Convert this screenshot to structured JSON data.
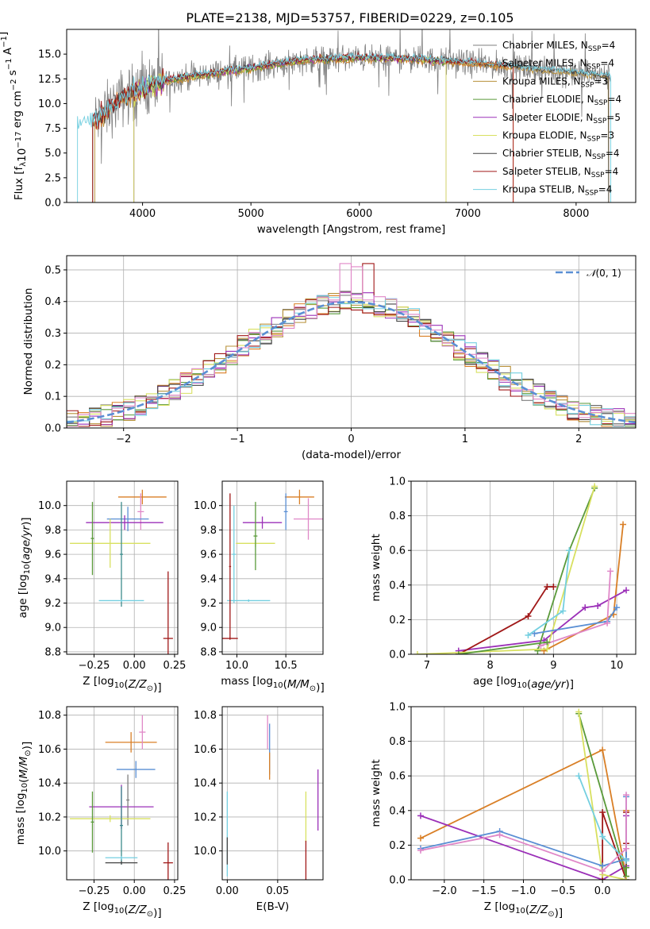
{
  "figure": {
    "title": "PLATE=2138, MJD=53757, FIBERID=0229, z=0.105"
  },
  "chart_data": [
    {
      "id": "spectrum",
      "type": "line",
      "xlabel": "wavelength [Angstrom, rest frame]",
      "ylabel": "Flux [f$_\\lambda$10$^{-17}$ erg cm$^{-2}$ s$^{-1}$ A$^{-1}$]",
      "ylabel_parts": [
        "Flux [f",
        "λ",
        "10",
        "−17",
        " erg cm",
        "−2",
        " s",
        "−1",
        " A",
        "−1",
        "]"
      ],
      "xlim": [
        3300,
        8550
      ],
      "ylim": [
        0,
        17.5
      ],
      "xticks": [
        4000,
        5000,
        6000,
        7000,
        8000
      ],
      "yticks": [
        0.0,
        2.5,
        5.0,
        7.5,
        10.0,
        12.5,
        15.0
      ],
      "grid": false,
      "legend_position": "right",
      "series": [
        {
          "name": "Chabrier MILES, N$_{SSP}$=4",
          "base": "Chabrier MILES, N",
          "sub": "SSP",
          "tail": "=4",
          "color": "#7f7f7f",
          "x_range": [
            3560,
            8320
          ]
        },
        {
          "name": "Salpeter MILES, N$_{SSP}$=4",
          "base": "Salpeter MILES, N",
          "sub": "SSP",
          "tail": "=4",
          "color": "#d97f26",
          "x_range": [
            3540,
            7420
          ]
        },
        {
          "name": "Kroupa MILES, N$_{SSP}$=3",
          "base": "Kroupa MILES, N",
          "sub": "SSP",
          "tail": "=3",
          "color": "#b8913a",
          "x_range": [
            3560,
            8300
          ]
        },
        {
          "name": "Chabrier ELODIE, N$_{SSP}$=4",
          "base": "Chabrier ELODIE, N",
          "sub": "SSP",
          "tail": "=4",
          "color": "#5a9a3a",
          "x_range": [
            3920,
            6800
          ]
        },
        {
          "name": "Salpeter ELODIE, N$_{SSP}$=5",
          "base": "Salpeter ELODIE, N",
          "sub": "SSP",
          "tail": "=5",
          "color": "#9b30b8",
          "x_range": [
            3920,
            6800
          ]
        },
        {
          "name": "Kroupa ELODIE, N$_{SSP}$=3",
          "base": "Kroupa ELODIE, N",
          "sub": "SSP",
          "tail": "=3",
          "color": "#d8e060",
          "x_range": [
            3920,
            6800
          ]
        },
        {
          "name": "Chabrier STELIB, N$_{SSP}$=4",
          "base": "Chabrier STELIB, N",
          "sub": "SSP",
          "tail": "=4",
          "color": "#444444",
          "x_range": [
            3540,
            8300
          ]
        },
        {
          "name": "Salpeter STELIB, N$_{SSP}$=4",
          "base": "Salpeter STELIB, N",
          "sub": "SSP",
          "tail": "=4",
          "color": "#a01818",
          "x_range": [
            3540,
            7420
          ]
        },
        {
          "name": "Kroupa STELIB, N$_{SSP}$=4",
          "base": "Kroupa STELIB, N",
          "sub": "SSP",
          "tail": "=4",
          "color": "#74cfe0",
          "x_range": [
            3400,
            8320
          ]
        }
      ],
      "continuum": {
        "x": [
          3400,
          3600,
          3800,
          4000,
          4200,
          4500,
          5000,
          5500,
          6000,
          6500,
          7000,
          7500,
          8000,
          8300
        ],
        "y": [
          8.0,
          8.5,
          10.5,
          11.5,
          12.3,
          12.8,
          13.6,
          14.4,
          14.6,
          14.5,
          14.1,
          13.6,
          13.1,
          12.7
        ]
      },
      "notes": "observed spectrum (gray, noisy) overlaid with model fits"
    },
    {
      "id": "residuals",
      "type": "histogram",
      "xlabel": "(data-model)/error",
      "ylabel": "Normed distribution",
      "xlim": [
        -2.5,
        2.5
      ],
      "ylim": [
        0,
        0.545
      ],
      "xticks": [
        -2,
        -1,
        0,
        1,
        2
      ],
      "yticks": [
        0.0,
        0.1,
        0.2,
        0.3,
        0.4,
        0.5
      ],
      "grid": true,
      "bin_edges_start": -2.5,
      "bin_width": 0.1,
      "normal_curve": {
        "name": "N(0,1)",
        "label_script": "𝒩",
        "label_rest": "(0, 1)",
        "color": "#5a8fd4",
        "mean": 0,
        "sigma": 1
      },
      "legend_position": "top-right",
      "series": [
        {
          "color": "#7f7f7f",
          "offset": 0.0
        },
        {
          "color": "#d97f26",
          "offset": 0.01
        },
        {
          "color": "#b8913a",
          "offset": -0.01
        },
        {
          "color": "#5a9a3a",
          "offset": 0.02
        },
        {
          "color": "#9b30b8",
          "offset": -0.02
        },
        {
          "color": "#d8e060",
          "offset": 0.015
        },
        {
          "color": "#444444",
          "offset": -0.015
        },
        {
          "color": "#a01818",
          "offset": 0.025
        },
        {
          "color": "#74cfe0",
          "offset": -0.025
        },
        {
          "color": "#e088c8",
          "offset": 0.005
        }
      ],
      "peaks": {
        "x": [
          -0.05,
          0.15,
          0.05
        ],
        "y": [
          0.52,
          0.52,
          0.51
        ]
      }
    },
    {
      "id": "age_vs_Z",
      "type": "errorbar",
      "xlabel": "Z [log$_{10}$($Z/Z_\\odot$)]",
      "ylabel": "age  [log$_{10}$($age/yr$)]",
      "xlim": [
        -0.42,
        0.27
      ],
      "ylim": [
        8.78,
        10.2
      ],
      "xticks": [
        -0.25,
        0.0,
        0.25
      ],
      "yticks": [
        8.8,
        9.0,
        9.2,
        9.4,
        9.6,
        9.8,
        10.0
      ],
      "grid": true,
      "points": [
        {
          "x": 0.05,
          "xerr": 0.15,
          "y": 10.07,
          "yerr": 0.06,
          "color": "#d97f26"
        },
        {
          "x": 0.04,
          "xerr": 0.02,
          "y": 9.95,
          "yerr": 0.15,
          "color": "#e088c8"
        },
        {
          "x": -0.04,
          "xerr": 0.13,
          "y": 9.89,
          "yerr": 0.1,
          "color": "#5a8fd4"
        },
        {
          "x": -0.06,
          "xerr": 0.24,
          "y": 9.86,
          "yerr": 0.06,
          "color": "#9b30b8"
        },
        {
          "x": -0.15,
          "xerr": 0.25,
          "y": 9.69,
          "yerr": 0.2,
          "color": "#d8e060"
        },
        {
          "x": -0.26,
          "xerr": 0.01,
          "y": 9.73,
          "yerr": 0.3,
          "color": "#5a9a3a"
        },
        {
          "x": -0.08,
          "xerr": 0.01,
          "y": 9.6,
          "yerr": 0.43,
          "color": "#3d8c8c"
        },
        {
          "x": -0.08,
          "xerr": 0.14,
          "y": 9.22,
          "yerr": 0.01,
          "color": "#74cfe0"
        },
        {
          "x": 0.21,
          "xerr": 0.03,
          "y": 8.91,
          "yerr": 0.55,
          "color": "#a01818"
        }
      ]
    },
    {
      "id": "age_vs_mass",
      "type": "errorbar",
      "xlabel": "mass [log$_{10}$($M/M_\\odot$)]",
      "ylabel": "",
      "xlim": [
        9.85,
        10.88
      ],
      "ylim": [
        8.78,
        10.2
      ],
      "xticks": [
        10.0,
        10.5
      ],
      "yticks": [
        8.8,
        9.0,
        9.2,
        9.4,
        9.6,
        9.8,
        10.0
      ],
      "grid": true,
      "points": [
        {
          "x": 10.64,
          "xerr": 0.15,
          "y": 10.07,
          "yerr": 0.06,
          "color": "#d97f26"
        },
        {
          "x": 10.73,
          "xerr": 0.15,
          "y": 9.89,
          "yerr": 0.17,
          "color": "#e088c8"
        },
        {
          "x": 10.5,
          "xerr": 0.02,
          "y": 9.95,
          "yerr": 0.15,
          "color": "#5a8fd4"
        },
        {
          "x": 10.26,
          "xerr": 0.2,
          "y": 9.86,
          "yerr": 0.05,
          "color": "#9b30b8"
        },
        {
          "x": 10.19,
          "xerr": 0.2,
          "y": 9.69,
          "yerr": 0.03,
          "color": "#d8e060"
        },
        {
          "x": 10.19,
          "xerr": 0.02,
          "y": 9.75,
          "yerr": 0.28,
          "color": "#5a9a3a"
        },
        {
          "x": 9.97,
          "xerr": 0.02,
          "y": 9.6,
          "yerr": 0.4,
          "color": "#74cfe0"
        },
        {
          "x": 10.12,
          "xerr": 0.22,
          "y": 9.22,
          "yerr": 0.01,
          "color": "#74cfe0"
        },
        {
          "x": 9.93,
          "xerr": 0.08,
          "y": 8.91,
          "yerr": 0.01,
          "color": "#a01818"
        },
        {
          "x": 9.93,
          "xerr": 0.01,
          "y": 9.5,
          "yerr": 0.6,
          "color": "#a01818"
        }
      ]
    },
    {
      "id": "weight_vs_age",
      "type": "line",
      "xlabel": "age  [log$_{10}$($age/yr$)]",
      "ylabel": "mass weight",
      "xlim": [
        6.75,
        10.3
      ],
      "ylim": [
        0,
        1.0
      ],
      "xticks": [
        7,
        8,
        9,
        10
      ],
      "yticks": [
        0.0,
        0.2,
        0.4,
        0.6,
        0.8,
        1.0
      ],
      "grid": true,
      "series": [
        {
          "color": "#d97f26",
          "x": [
            8.85,
            9.95,
            10.1
          ],
          "y": [
            0.02,
            0.23,
            0.75
          ]
        },
        {
          "color": "#9b30b8",
          "x": [
            7.5,
            8.85,
            9.5,
            9.7,
            10.15
          ],
          "y": [
            0.02,
            0.08,
            0.27,
            0.28,
            0.37
          ]
        },
        {
          "color": "#a01818",
          "x": [
            7.5,
            8.6,
            8.9,
            9.0
          ],
          "y": [
            0.0,
            0.22,
            0.39,
            0.39
          ]
        },
        {
          "color": "#5a9a3a",
          "x": [
            8.75,
            9.25,
            9.65
          ],
          "y": [
            0.02,
            0.6,
            0.96
          ]
        },
        {
          "color": "#d8e060",
          "x": [
            6.85,
            8.9,
            9.65
          ],
          "y": [
            0.0,
            0.03,
            0.97
          ]
        },
        {
          "color": "#5a8fd4",
          "x": [
            8.7,
            9.85,
            10.0
          ],
          "y": [
            0.12,
            0.19,
            0.27
          ]
        },
        {
          "color": "#74cfe0",
          "x": [
            8.6,
            9.15,
            9.25
          ],
          "y": [
            0.11,
            0.25,
            0.6
          ]
        },
        {
          "color": "#e088c8",
          "x": [
            8.8,
            9.85,
            9.9
          ],
          "y": [
            0.05,
            0.18,
            0.48
          ]
        },
        {
          "color": "#5a9a3a",
          "x": [
            7.5,
            8.9
          ],
          "y": [
            0.0,
            0.07
          ]
        }
      ]
    },
    {
      "id": "mass_vs_Z",
      "type": "errorbar",
      "xlabel": "Z [log$_{10}$($Z/Z_\\odot$)]",
      "ylabel": "mass [log$_{10}$($M/M_\\odot$)]",
      "xlim": [
        -0.42,
        0.27
      ],
      "ylim": [
        9.83,
        10.85
      ],
      "xticks": [
        -0.25,
        0.0,
        0.25
      ],
      "yticks": [
        10.0,
        10.2,
        10.4,
        10.6,
        10.8
      ],
      "grid": true,
      "points": [
        {
          "x": -0.02,
          "xerr": 0.16,
          "y": 10.64,
          "yerr": 0.06,
          "color": "#d97f26"
        },
        {
          "x": 0.05,
          "xerr": 0.02,
          "y": 10.7,
          "yerr": 0.1,
          "color": "#e088c8"
        },
        {
          "x": 0.01,
          "xerr": 0.12,
          "y": 10.48,
          "yerr": 0.05,
          "color": "#5a8fd4"
        },
        {
          "x": -0.08,
          "xerr": 0.2,
          "y": 10.26,
          "yerr": 0.13,
          "color": "#9b30b8"
        },
        {
          "x": -0.04,
          "xerr": 0.01,
          "y": 10.3,
          "yerr": 0.15,
          "color": "#7f7f7f"
        },
        {
          "x": -0.15,
          "xerr": 0.25,
          "y": 10.19,
          "yerr": 0.02,
          "color": "#d8e060"
        },
        {
          "x": -0.26,
          "xerr": 0.01,
          "y": 10.17,
          "yerr": 0.18,
          "color": "#5a9a3a"
        },
        {
          "x": -0.08,
          "xerr": 0.01,
          "y": 10.15,
          "yerr": 0.23,
          "color": "#3d8c8c"
        },
        {
          "x": -0.08,
          "xerr": 0.1,
          "y": 9.96,
          "yerr": 0.01,
          "color": "#74cfe0"
        },
        {
          "x": -0.08,
          "xerr": 0.1,
          "y": 9.93,
          "yerr": 0.01,
          "color": "#444444"
        },
        {
          "x": 0.21,
          "xerr": 0.03,
          "y": 9.93,
          "yerr": 0.12,
          "color": "#a01818"
        }
      ]
    },
    {
      "id": "mass_vs_ebv",
      "type": "errorbar",
      "xlabel": "E(B-V)",
      "ylabel": "",
      "xlim": [
        -0.005,
        0.095
      ],
      "ylim": [
        9.83,
        10.85
      ],
      "xticks": [
        0.0,
        0.05
      ],
      "yticks": [
        10.0,
        10.2,
        10.4,
        10.6,
        10.8
      ],
      "grid": true,
      "points": [
        {
          "x": 0.0,
          "xerr": 0.0,
          "y": 10.1,
          "yerr": 0.25,
          "color": "#74cfe0"
        },
        {
          "x": 0.0,
          "xerr": 0.0,
          "y": 10.0,
          "yerr": 0.08,
          "color": "#444444"
        },
        {
          "x": 0.04,
          "xerr": 0.0,
          "y": 10.7,
          "yerr": 0.1,
          "color": "#e088c8"
        },
        {
          "x": 0.042,
          "xerr": 0.0,
          "y": 10.6,
          "yerr": 0.15,
          "color": "#5a8fd4"
        },
        {
          "x": 0.042,
          "xerr": 0.0,
          "y": 10.5,
          "yerr": 0.08,
          "color": "#d97f26"
        },
        {
          "x": 0.078,
          "xerr": 0.0,
          "y": 10.2,
          "yerr": 0.15,
          "color": "#d8e060"
        },
        {
          "x": 0.078,
          "xerr": 0.0,
          "y": 9.93,
          "yerr": 0.13,
          "color": "#a01818"
        },
        {
          "x": 0.09,
          "xerr": 0.0,
          "y": 10.3,
          "yerr": 0.18,
          "color": "#9b30b8"
        }
      ]
    },
    {
      "id": "weight_vs_Z",
      "type": "line",
      "xlabel": "Z [log$_{10}$($Z/Z_\\odot$)]",
      "ylabel": "mass weight",
      "xlim": [
        -2.42,
        0.42
      ],
      "ylim": [
        0,
        1.0
      ],
      "xticks": [
        -2.0,
        -1.5,
        -1.0,
        -0.5,
        0.0
      ],
      "yticks": [
        0.0,
        0.2,
        0.4,
        0.6,
        0.8,
        1.0
      ],
      "grid": true,
      "series": [
        {
          "color": "#d97f26",
          "x": [
            -2.3,
            0.0,
            0.3,
            0.3
          ],
          "y": [
            0.24,
            0.75,
            0.02,
            0.4
          ]
        },
        {
          "color": "#9b30b8",
          "x": [
            -2.3,
            0.0,
            0.3,
            0.3
          ],
          "y": [
            0.37,
            0.0,
            0.08,
            0.37
          ]
        },
        {
          "color": "#a01818",
          "x": [
            0.0,
            0.0,
            0.3,
            0.3,
            0.3
          ],
          "y": [
            0.0,
            0.39,
            0.0,
            0.21,
            0.39
          ]
        },
        {
          "color": "#5a9a3a",
          "x": [
            -0.3,
            0.3,
            0.3
          ],
          "y": [
            0.96,
            0.02,
            0.07
          ]
        },
        {
          "color": "#d8e060",
          "x": [
            -0.3,
            0.0,
            0.3
          ],
          "y": [
            0.97,
            0.03,
            0.0
          ]
        },
        {
          "color": "#5a8fd4",
          "x": [
            -2.3,
            -1.3,
            0.0,
            0.3,
            0.3
          ],
          "y": [
            0.18,
            0.28,
            0.08,
            0.12,
            0.48
          ]
        },
        {
          "color": "#74cfe0",
          "x": [
            -0.3,
            0.0,
            0.3
          ],
          "y": [
            0.6,
            0.25,
            0.11
          ]
        },
        {
          "color": "#e088c8",
          "x": [
            -2.3,
            -1.3,
            0.0,
            0.3,
            0.3
          ],
          "y": [
            0.17,
            0.26,
            0.05,
            0.18,
            0.49
          ]
        }
      ]
    }
  ]
}
